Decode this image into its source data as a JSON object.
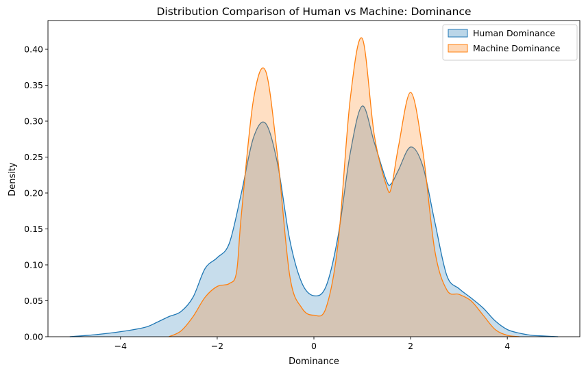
{
  "chart_data": {
    "type": "area",
    "title": "Distribution Comparison of Human vs Machine: Dominance",
    "xlabel": "Dominance",
    "ylabel": "Density",
    "xlim": [
      -5.5,
      5.5
    ],
    "ylim": [
      0,
      0.44
    ],
    "xticks": [
      -4,
      -2,
      0,
      2,
      4
    ],
    "xtick_labels": [
      "−4",
      "−2",
      "0",
      "2",
      "4"
    ],
    "yticks": [
      0,
      0.05,
      0.1,
      0.15,
      0.2,
      0.25,
      0.3,
      0.35,
      0.4
    ],
    "ytick_labels": [
      "0.00",
      "0.05",
      "0.10",
      "0.15",
      "0.20",
      "0.25",
      "0.30",
      "0.35",
      "0.40"
    ],
    "grid": false,
    "legend_position": "top-right",
    "series": [
      {
        "name": "Human Dominance",
        "color": "#1f77b4",
        "fill_color": "#1f77b4",
        "fill_opacity": 0.25,
        "x": [
          -5.05,
          -4.5,
          -4.0,
          -3.5,
          -3.25,
          -3.0,
          -2.75,
          -2.5,
          -2.25,
          -2.0,
          -1.75,
          -1.5,
          -1.25,
          -1.0,
          -0.75,
          -0.5,
          -0.25,
          0.0,
          0.25,
          0.5,
          0.75,
          1.0,
          1.25,
          1.5,
          1.6,
          1.75,
          2.0,
          2.25,
          2.5,
          2.75,
          3.0,
          3.25,
          3.5,
          3.75,
          4.0,
          4.25,
          4.5,
          4.75,
          5.05
        ],
        "y": [
          0.0,
          0.003,
          0.007,
          0.013,
          0.02,
          0.028,
          0.035,
          0.055,
          0.095,
          0.11,
          0.13,
          0.2,
          0.277,
          0.297,
          0.24,
          0.135,
          0.075,
          0.057,
          0.07,
          0.14,
          0.255,
          0.321,
          0.27,
          0.217,
          0.213,
          0.232,
          0.264,
          0.238,
          0.16,
          0.085,
          0.067,
          0.054,
          0.04,
          0.022,
          0.01,
          0.005,
          0.002,
          0.001,
          0.0
        ]
      },
      {
        "name": "Machine Dominance",
        "color": "#ff7f0e",
        "fill_color": "#ff7f0e",
        "fill_opacity": 0.25,
        "x": [
          -3.0,
          -2.75,
          -2.5,
          -2.25,
          -2.0,
          -1.75,
          -1.6,
          -1.5,
          -1.25,
          -1.0,
          -0.75,
          -0.5,
          -0.25,
          0.0,
          0.25,
          0.5,
          0.75,
          1.0,
          1.25,
          1.5,
          1.6,
          1.75,
          2.0,
          2.25,
          2.5,
          2.75,
          3.0,
          3.25,
          3.5,
          3.75,
          4.0,
          4.25
        ],
        "y": [
          0.0,
          0.008,
          0.028,
          0.055,
          0.07,
          0.074,
          0.09,
          0.17,
          0.33,
          0.37,
          0.25,
          0.085,
          0.04,
          0.03,
          0.04,
          0.13,
          0.33,
          0.415,
          0.28,
          0.21,
          0.207,
          0.265,
          0.34,
          0.26,
          0.12,
          0.065,
          0.059,
          0.05,
          0.03,
          0.01,
          0.002,
          0.0
        ]
      }
    ]
  }
}
